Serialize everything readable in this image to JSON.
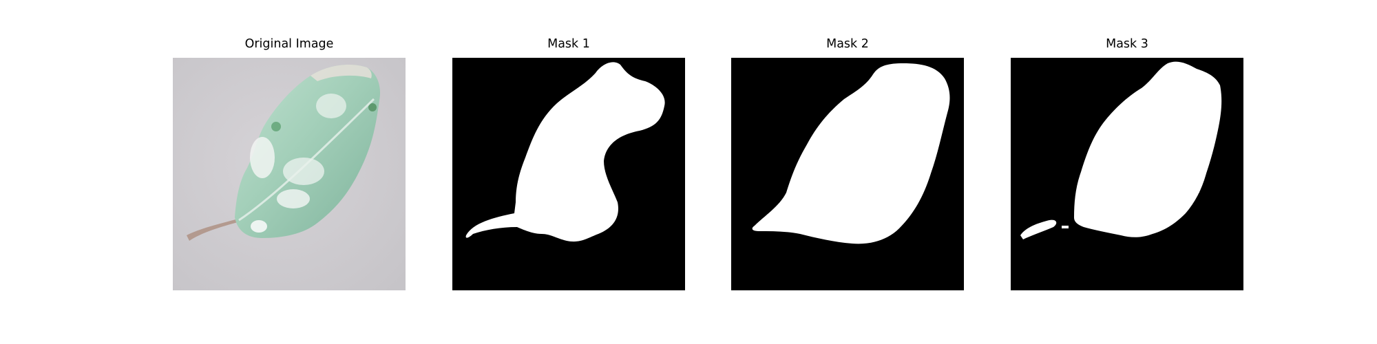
{
  "panels": [
    {
      "title": "Original Image",
      "content": "leaf-photo"
    },
    {
      "title": "Mask 1",
      "content": "binary-mask"
    },
    {
      "title": "Mask 2",
      "content": "binary-mask"
    },
    {
      "title": "Mask 3",
      "content": "binary-mask"
    }
  ],
  "colors": {
    "page_background": "#ffffff",
    "mask_background": "#000000",
    "mask_foreground": "#ffffff",
    "photo_background": "#cfcdd0",
    "leaf_tint": "#a9d3bf"
  }
}
